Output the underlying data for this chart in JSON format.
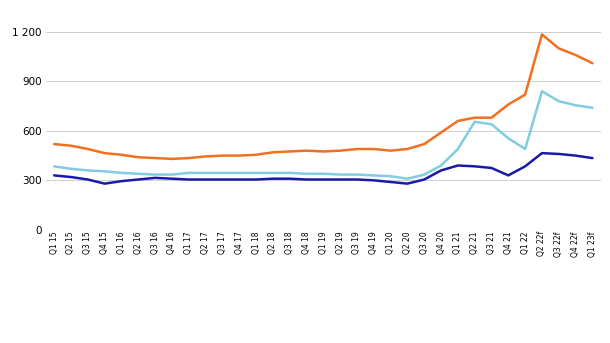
{
  "x_labels": [
    "Q1 15",
    "Q2 15",
    "Q3 15",
    "Q4 15",
    "Q1 16",
    "Q2 16",
    "Q3 16",
    "Q4 16",
    "Q1 17",
    "Q2 17",
    "Q3 17",
    "Q4 17",
    "Q1 18",
    "Q2 18",
    "Q3 18",
    "Q4 18",
    "Q1 19",
    "Q2 19",
    "Q3 19",
    "Q4 19",
    "Q1 20",
    "Q2 20",
    "Q3 20",
    "Q4 20",
    "Q1 21",
    "Q2 21",
    "Q3 21",
    "Q4 21",
    "Q1 22",
    "Q2 22f",
    "Q3 22f",
    "Q4 22f",
    "Q1 23f"
  ],
  "harina_soja": [
    330,
    320,
    305,
    280,
    295,
    305,
    315,
    310,
    305,
    305,
    305,
    305,
    305,
    310,
    310,
    305,
    305,
    305,
    305,
    300,
    290,
    280,
    305,
    360,
    390,
    385,
    375,
    330,
    385,
    465,
    460,
    450,
    435
  ],
  "trigo": [
    520,
    510,
    490,
    465,
    455,
    440,
    435,
    430,
    435,
    445,
    450,
    450,
    455,
    470,
    475,
    480,
    475,
    480,
    490,
    490,
    480,
    490,
    520,
    590,
    660,
    680,
    680,
    760,
    820,
    1185,
    1100,
    1060,
    1010
  ],
  "maiz": [
    385,
    370,
    360,
    355,
    345,
    340,
    335,
    335,
    345,
    345,
    345,
    345,
    345,
    345,
    345,
    340,
    340,
    335,
    335,
    330,
    325,
    310,
    335,
    390,
    490,
    655,
    640,
    555,
    490,
    840,
    780,
    755,
    740
  ],
  "harina_color": "#1a1aaa",
  "trigo_color": "#f07020",
  "maiz_color": "#80cce0",
  "ylim": [
    0,
    1300
  ],
  "yticks": [
    0,
    300,
    600,
    900,
    1200
  ],
  "ytick_labels": [
    "0",
    "300",
    "600",
    "900",
    "1 200"
  ],
  "background_color": "#ffffff",
  "grid_color": "#d0d0d0",
  "line_width": 1.8
}
